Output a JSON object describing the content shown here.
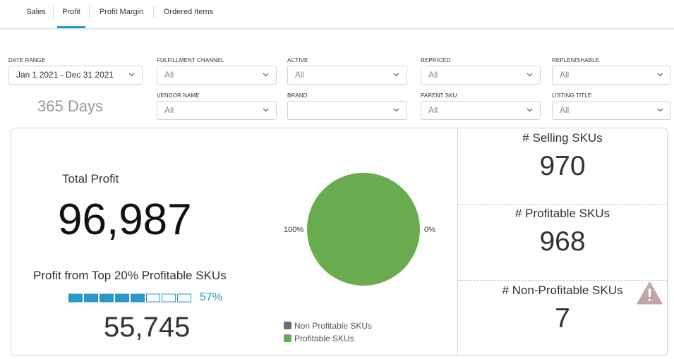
{
  "tabs": [
    {
      "label": "Sales",
      "active": false
    },
    {
      "label": "Profit",
      "active": true
    },
    {
      "label": "Profit Margin",
      "active": false
    },
    {
      "label": "Ordered Items",
      "active": false
    }
  ],
  "filters": {
    "date_range": {
      "label": "DATE RANGE",
      "value": "Jan 1 2021 - Dec 31 2021"
    },
    "fulfillment_channel": {
      "label": "FULFILLMENT CHANNEL",
      "value": "All"
    },
    "active": {
      "label": "ACTIVE",
      "value": "All"
    },
    "repriced": {
      "label": "REPRICED",
      "value": "All"
    },
    "replenishable": {
      "label": "REPLENISHABLE",
      "value": "All"
    },
    "vendor_name": {
      "label": "VENDOR NAME",
      "value": "All"
    },
    "brand": {
      "label": "BRAND",
      "value": ""
    },
    "parent_sku": {
      "label": "PARENT SKU",
      "value": "All"
    },
    "listing_title": {
      "label": "LISTING TITLE",
      "value": "All"
    }
  },
  "days": "365 Days",
  "total_profit": {
    "label": "Total Profit",
    "value": "96,987"
  },
  "top20": {
    "label": "Profit from Top 20% Profitable SKUs",
    "percent_text": "57%",
    "filled_blocks": 5,
    "total_blocks": 8,
    "value": "55,745"
  },
  "chart_data": {
    "type": "pie",
    "slices": [
      {
        "name": "Non Profitable SKUs",
        "value": 0,
        "label": "0%",
        "color": "#6e6e6e"
      },
      {
        "name": "Profitable SKUs",
        "value": 100,
        "label": "100%",
        "color": "#6aab4f"
      }
    ],
    "legend": [
      "Non Profitable SKUs",
      "Profitable SKUs"
    ],
    "legend_position": "bottom-left"
  },
  "kpis": {
    "selling": {
      "label": "# Selling SKUs",
      "value": "970"
    },
    "profitable": {
      "label": "# Profitable SKUs",
      "value": "968"
    },
    "non_profitable": {
      "label": "# Non-Profitable SKUs",
      "value": "7"
    }
  },
  "colors": {
    "accent": "#1f9bd7",
    "progress": "#2a97c9",
    "warning": "#bfa8a5"
  }
}
